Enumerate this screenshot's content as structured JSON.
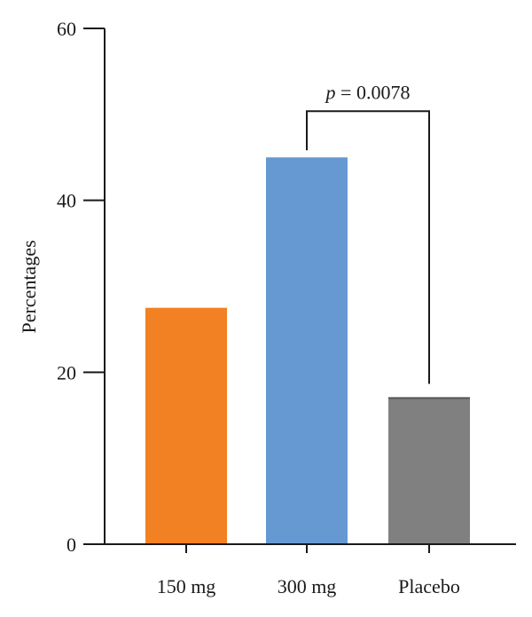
{
  "chart_data": {
    "type": "bar",
    "categories": [
      "150 mg",
      "300 mg",
      "Placebo"
    ],
    "values": [
      27.5,
      45,
      17
    ],
    "colors": [
      "#f28123",
      "#6699d2",
      "#808080"
    ],
    "title": "",
    "xlabel": "",
    "ylabel": "Percentages",
    "ylim": [
      0,
      60
    ],
    "yticks": [
      0,
      20,
      40,
      60
    ],
    "grid": false,
    "annotation": {
      "between": [
        "300 mg",
        "Placebo"
      ],
      "p_symbol": "p",
      "p_text": " = 0.0078"
    }
  }
}
